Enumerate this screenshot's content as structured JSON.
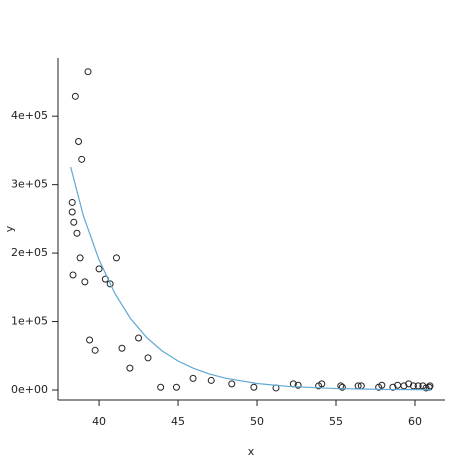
{
  "chart_data": {
    "type": "scatter",
    "x_label": "x",
    "y_label": "y",
    "xlim": [
      37.4,
      61.9
    ],
    "ylim": [
      -14600,
      485000
    ],
    "xticks": [
      40,
      45,
      50,
      55,
      60
    ],
    "yticks": [
      {
        "value": 0,
        "label": "0e+00"
      },
      {
        "value": 100000,
        "label": "1e+05"
      },
      {
        "value": 200000,
        "label": "2e+05"
      },
      {
        "value": 300000,
        "label": "3e+05"
      },
      {
        "value": 400000,
        "label": "4e+05"
      }
    ],
    "series": [
      {
        "type": "scatter",
        "color": "#222222",
        "x": [
          39.3,
          38.5,
          38.7,
          38.9,
          38.3,
          38.3,
          38.4,
          38.6,
          38.8,
          38.35,
          39.1,
          40.0,
          40.4,
          40.7,
          41.1,
          39.4,
          39.75,
          41.45,
          42.5,
          43.1,
          41.95,
          43.9,
          44.9,
          45.95,
          47.1,
          48.4,
          49.8,
          51.2,
          52.3,
          52.6,
          53.9,
          54.1,
          55.3,
          55.4,
          56.4,
          56.6,
          57.7,
          57.9,
          58.6,
          58.9,
          59.3,
          59.6,
          59.9,
          60.2,
          60.5,
          60.7,
          60.9,
          60.95
        ],
        "values": [
          465000,
          429000,
          363000,
          337000,
          274000,
          260000,
          245000,
          229000,
          193000,
          168000,
          158000,
          177000,
          162000,
          155000,
          193000,
          73000,
          58000,
          61000,
          76000,
          47000,
          32000,
          4000,
          4000,
          17000,
          14000,
          9000,
          4000,
          3000,
          9000,
          7000,
          6000,
          9000,
          6000,
          4000,
          6000,
          6000,
          4000,
          7000,
          4000,
          7000,
          6000,
          9000,
          6000,
          6000,
          6000,
          3000,
          4000,
          6000
        ]
      },
      {
        "type": "line",
        "color": "#5fa8d3",
        "x": [
          38.2,
          39,
          40,
          41,
          42,
          43,
          44,
          45,
          46,
          47,
          48,
          50,
          52,
          55,
          58,
          61
        ],
        "values": [
          326000,
          255000,
          190000,
          141000,
          104000,
          77000,
          57000,
          42400,
          31500,
          23300,
          17300,
          9500,
          5200,
          2100,
          850,
          350
        ]
      }
    ]
  }
}
